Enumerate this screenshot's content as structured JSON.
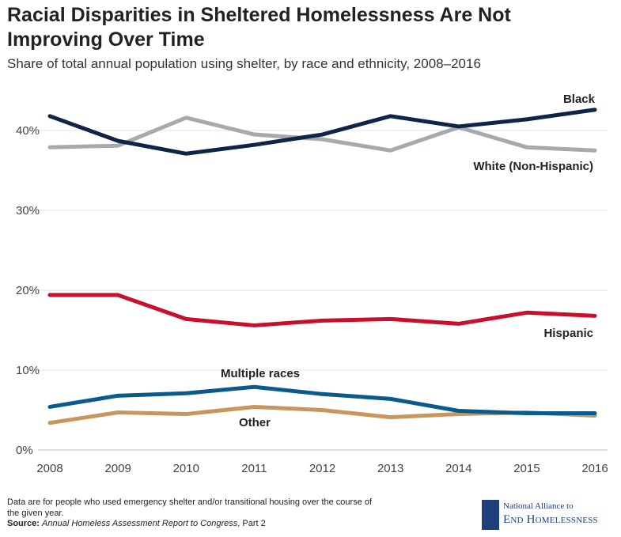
{
  "chart_data": {
    "type": "line",
    "title": "Racial Disparities in Sheltered Homelessness Are Not Improving Over Time",
    "subtitle": "Share of total annual population using shelter, by race and ethnicity, 2008–2016",
    "x": [
      "2008",
      "2009",
      "2010",
      "2011",
      "2012",
      "2013",
      "2014",
      "2015",
      "2016"
    ],
    "ylim": [
      0,
      45
    ],
    "yticks": [
      "0%",
      "10%",
      "20%",
      "30%",
      "40%"
    ],
    "grid": true,
    "series": [
      {
        "name": "White (Non-Hispanic)",
        "color": "#a7a9ac",
        "values": [
          37.9,
          38.1,
          41.6,
          39.5,
          38.9,
          37.5,
          40.4,
          37.9,
          37.5
        ]
      },
      {
        "name": "Black",
        "color": "#0f2447",
        "values": [
          41.8,
          38.7,
          37.1,
          38.2,
          39.5,
          41.8,
          40.5,
          41.4,
          42.6
        ]
      },
      {
        "name": "Hispanic",
        "color": "#c8102e",
        "values": [
          19.4,
          19.4,
          16.4,
          15.6,
          16.2,
          16.4,
          15.8,
          17.2,
          16.8
        ]
      },
      {
        "name": "Other",
        "color": "#c8955e",
        "values": [
          3.4,
          4.7,
          4.5,
          5.4,
          5.0,
          4.1,
          4.5,
          4.7,
          4.3
        ]
      },
      {
        "name": "Multiple races",
        "color": "#0a5a8c",
        "values": [
          5.4,
          6.8,
          7.1,
          7.9,
          7.0,
          6.4,
          4.9,
          4.6,
          4.6
        ]
      }
    ]
  },
  "footer": {
    "note": "Data are for people who used emergency shelter and/or transitional housing over the course of the given year.",
    "source_label": "Source:",
    "source_title": "Annual Homeless Assessment Report to Congress",
    "source_rest": ", Part 2",
    "logo_line1": "National Alliance to",
    "logo_line2": "End Homelessness"
  }
}
